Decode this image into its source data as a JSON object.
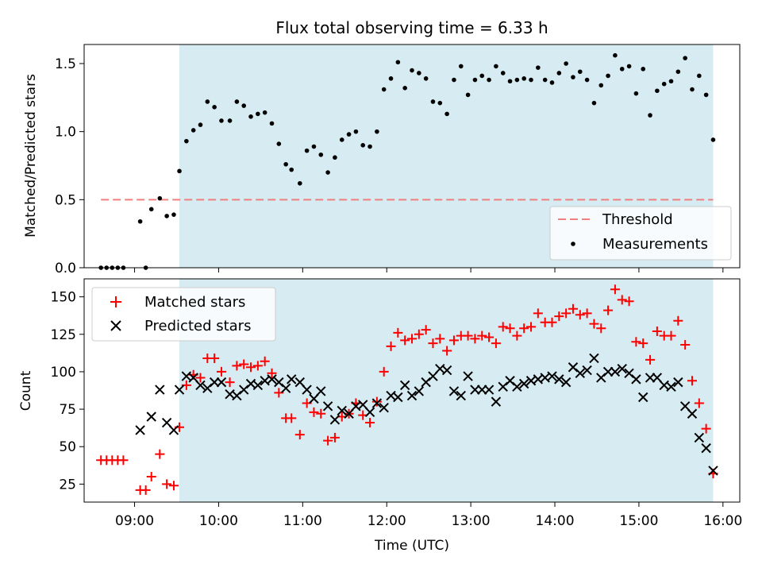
{
  "title": "Flux total observing time = 6.33 h",
  "colors": {
    "shade": "#add8e6",
    "threshold": "#f08080",
    "matched": "#ff0000",
    "predicted": "#000000",
    "measurement": "#000000"
  },
  "chart_data": [
    {
      "type": "scatter",
      "ylabel": "Matched/Predicted stars",
      "xlim": [
        "08:24",
        "16:12"
      ],
      "ylim": [
        0,
        1.64
      ],
      "yticks": [
        "0.0",
        "0.5",
        "1.0",
        "1.5"
      ],
      "shaded_span": [
        "09:32",
        "15:53"
      ],
      "legend": {
        "location": "lower right",
        "entries": [
          "Threshold",
          "Measurements"
        ]
      },
      "threshold": {
        "name": "Threshold",
        "value": 0.5,
        "x_range": [
          "08:36",
          "15:53"
        ]
      },
      "series": [
        {
          "name": "Measurements",
          "points": [
            [
              "08:36",
              0.0
            ],
            [
              "08:40",
              0.0
            ],
            [
              "08:44",
              0.0
            ],
            [
              "08:48",
              0.0
            ],
            [
              "08:52",
              0.0
            ],
            [
              "09:04",
              0.34
            ],
            [
              "09:08",
              0.0
            ],
            [
              "09:12",
              0.43
            ],
            [
              "09:18",
              0.51
            ],
            [
              "09:23",
              0.38
            ],
            [
              "09:28",
              0.39
            ],
            [
              "09:32",
              0.71
            ],
            [
              "09:37",
              0.93
            ],
            [
              "09:42",
              1.01
            ],
            [
              "09:47",
              1.05
            ],
            [
              "09:52",
              1.22
            ],
            [
              "09:57",
              1.18
            ],
            [
              "10:02",
              1.08
            ],
            [
              "10:08",
              1.08
            ],
            [
              "10:13",
              1.22
            ],
            [
              "10:18",
              1.19
            ],
            [
              "10:23",
              1.11
            ],
            [
              "10:28",
              1.13
            ],
            [
              "10:33",
              1.14
            ],
            [
              "10:38",
              1.06
            ],
            [
              "10:43",
              0.91
            ],
            [
              "10:48",
              0.76
            ],
            [
              "10:52",
              0.72
            ],
            [
              "10:58",
              0.62
            ],
            [
              "11:03",
              0.86
            ],
            [
              "11:08",
              0.89
            ],
            [
              "11:13",
              0.83
            ],
            [
              "11:18",
              0.7
            ],
            [
              "11:23",
              0.81
            ],
            [
              "11:28",
              0.94
            ],
            [
              "11:33",
              0.98
            ],
            [
              "11:38",
              1.0
            ],
            [
              "11:43",
              0.9
            ],
            [
              "11:48",
              0.89
            ],
            [
              "11:53",
              1.0
            ],
            [
              "11:58",
              1.31
            ],
            [
              "12:03",
              1.39
            ],
            [
              "12:08",
              1.51
            ],
            [
              "12:13",
              1.32
            ],
            [
              "12:18",
              1.45
            ],
            [
              "12:23",
              1.43
            ],
            [
              "12:28",
              1.39
            ],
            [
              "12:33",
              1.22
            ],
            [
              "12:38",
              1.21
            ],
            [
              "12:43",
              1.13
            ],
            [
              "12:48",
              1.38
            ],
            [
              "12:53",
              1.48
            ],
            [
              "12:58",
              1.27
            ],
            [
              "13:03",
              1.38
            ],
            [
              "13:08",
              1.41
            ],
            [
              "13:13",
              1.38
            ],
            [
              "13:18",
              1.48
            ],
            [
              "13:23",
              1.43
            ],
            [
              "13:28",
              1.37
            ],
            [
              "13:33",
              1.38
            ],
            [
              "13:38",
              1.39
            ],
            [
              "13:43",
              1.38
            ],
            [
              "13:48",
              1.47
            ],
            [
              "13:53",
              1.38
            ],
            [
              "13:58",
              1.36
            ],
            [
              "14:03",
              1.43
            ],
            [
              "14:08",
              1.5
            ],
            [
              "14:13",
              1.4
            ],
            [
              "14:18",
              1.44
            ],
            [
              "14:23",
              1.38
            ],
            [
              "14:28",
              1.21
            ],
            [
              "14:33",
              1.34
            ],
            [
              "14:38",
              1.41
            ],
            [
              "14:43",
              1.56
            ],
            [
              "14:48",
              1.46
            ],
            [
              "14:53",
              1.48
            ],
            [
              "14:58",
              1.28
            ],
            [
              "15:03",
              1.46
            ],
            [
              "15:08",
              1.12
            ],
            [
              "15:13",
              1.3
            ],
            [
              "15:18",
              1.35
            ],
            [
              "15:23",
              1.37
            ],
            [
              "15:28",
              1.44
            ],
            [
              "15:33",
              1.54
            ],
            [
              "15:38",
              1.31
            ],
            [
              "15:43",
              1.41
            ],
            [
              "15:48",
              1.27
            ],
            [
              "15:53",
              0.94
            ]
          ]
        }
      ]
    },
    {
      "type": "scatter",
      "xlabel": "Time (UTC)",
      "ylabel": "Count",
      "xlim": [
        "08:24",
        "16:12"
      ],
      "ylim": [
        13,
        162
      ],
      "xticks": [
        "09:00",
        "10:00",
        "11:00",
        "12:00",
        "13:00",
        "14:00",
        "15:00",
        "16:00"
      ],
      "yticks": [
        "25",
        "50",
        "75",
        "100",
        "125",
        "150"
      ],
      "shaded_span": [
        "09:32",
        "15:53"
      ],
      "legend": {
        "location": "upper left",
        "entries": [
          "Matched stars",
          "Predicted stars"
        ]
      },
      "series": [
        {
          "name": "Matched stars",
          "marker": "+",
          "points": [
            [
              "08:36",
              41
            ],
            [
              "08:40",
              41
            ],
            [
              "08:44",
              41
            ],
            [
              "08:48",
              41
            ],
            [
              "08:52",
              41
            ],
            [
              "09:04",
              21
            ],
            [
              "09:08",
              21
            ],
            [
              "09:12",
              30
            ],
            [
              "09:18",
              45
            ],
            [
              "09:23",
              25
            ],
            [
              "09:28",
              24
            ],
            [
              "09:32",
              63
            ],
            [
              "09:37",
              91
            ],
            [
              "09:42",
              98
            ],
            [
              "09:47",
              96
            ],
            [
              "09:52",
              109
            ],
            [
              "09:57",
              109
            ],
            [
              "10:02",
              100
            ],
            [
              "10:08",
              93
            ],
            [
              "10:13",
              104
            ],
            [
              "10:18",
              105
            ],
            [
              "10:23",
              103
            ],
            [
              "10:28",
              104
            ],
            [
              "10:33",
              107
            ],
            [
              "10:38",
              99
            ],
            [
              "10:43",
              86
            ],
            [
              "10:48",
              69
            ],
            [
              "10:52",
              69
            ],
            [
              "10:58",
              58
            ],
            [
              "11:03",
              79
            ],
            [
              "11:08",
              73
            ],
            [
              "11:13",
              72
            ],
            [
              "11:18",
              54
            ],
            [
              "11:23",
              56
            ],
            [
              "11:28",
              70
            ],
            [
              "11:33",
              72
            ],
            [
              "11:38",
              79
            ],
            [
              "11:43",
              71
            ],
            [
              "11:48",
              66
            ],
            [
              "11:53",
              80
            ],
            [
              "11:58",
              100
            ],
            [
              "12:03",
              117
            ],
            [
              "12:08",
              126
            ],
            [
              "12:13",
              121
            ],
            [
              "12:18",
              122
            ],
            [
              "12:23",
              125
            ],
            [
              "12:28",
              128
            ],
            [
              "12:33",
              119
            ],
            [
              "12:38",
              122
            ],
            [
              "12:43",
              114
            ],
            [
              "12:48",
              121
            ],
            [
              "12:53",
              124
            ],
            [
              "12:58",
              124
            ],
            [
              "13:03",
              122
            ],
            [
              "13:08",
              124
            ],
            [
              "13:13",
              123
            ],
            [
              "13:18",
              119
            ],
            [
              "13:23",
              130
            ],
            [
              "13:28",
              129
            ],
            [
              "13:33",
              124
            ],
            [
              "13:38",
              129
            ],
            [
              "13:43",
              130
            ],
            [
              "13:48",
              139
            ],
            [
              "13:53",
              133
            ],
            [
              "13:58",
              133
            ],
            [
              "14:03",
              137
            ],
            [
              "14:08",
              139
            ],
            [
              "14:13",
              142
            ],
            [
              "14:18",
              138
            ],
            [
              "14:23",
              139
            ],
            [
              "14:28",
              132
            ],
            [
              "14:33",
              129
            ],
            [
              "14:38",
              141
            ],
            [
              "14:43",
              155
            ],
            [
              "14:48",
              148
            ],
            [
              "14:53",
              147
            ],
            [
              "14:58",
              120
            ],
            [
              "15:03",
              119
            ],
            [
              "15:08",
              108
            ],
            [
              "15:13",
              127
            ],
            [
              "15:18",
              124
            ],
            [
              "15:23",
              124
            ],
            [
              "15:28",
              134
            ],
            [
              "15:33",
              118
            ],
            [
              "15:38",
              94
            ],
            [
              "15:43",
              79
            ],
            [
              "15:48",
              62
            ],
            [
              "15:53",
              32
            ]
          ]
        },
        {
          "name": "Predicted stars",
          "marker": "x",
          "points": [
            [
              "09:04",
              61
            ],
            [
              "09:12",
              70
            ],
            [
              "09:18",
              88
            ],
            [
              "09:23",
              66
            ],
            [
              "09:28",
              61
            ],
            [
              "09:32",
              88
            ],
            [
              "09:37",
              97
            ],
            [
              "09:42",
              96
            ],
            [
              "09:47",
              91
            ],
            [
              "09:52",
              89
            ],
            [
              "09:57",
              93
            ],
            [
              "10:02",
              93
            ],
            [
              "10:08",
              85
            ],
            [
              "10:13",
              84
            ],
            [
              "10:18",
              88
            ],
            [
              "10:23",
              92
            ],
            [
              "10:28",
              91
            ],
            [
              "10:33",
              94
            ],
            [
              "10:38",
              95
            ],
            [
              "10:43",
              93
            ],
            [
              "10:48",
              89
            ],
            [
              "10:52",
              95
            ],
            [
              "10:58",
              93
            ],
            [
              "11:03",
              88
            ],
            [
              "11:08",
              82
            ],
            [
              "11:13",
              87
            ],
            [
              "11:18",
              77
            ],
            [
              "11:23",
              68
            ],
            [
              "11:28",
              74
            ],
            [
              "11:33",
              72
            ],
            [
              "11:38",
              77
            ],
            [
              "11:43",
              78
            ],
            [
              "11:48",
              73
            ],
            [
              "11:53",
              79
            ],
            [
              "11:58",
              76
            ],
            [
              "12:03",
              84
            ],
            [
              "12:08",
              83
            ],
            [
              "12:13",
              91
            ],
            [
              "12:18",
              84
            ],
            [
              "12:23",
              87
            ],
            [
              "12:28",
              93
            ],
            [
              "12:33",
              97
            ],
            [
              "12:38",
              102
            ],
            [
              "12:43",
              101
            ],
            [
              "12:48",
              87
            ],
            [
              "12:53",
              84
            ],
            [
              "12:58",
              97
            ],
            [
              "13:03",
              88
            ],
            [
              "13:08",
              88
            ],
            [
              "13:13",
              88
            ],
            [
              "13:18",
              80
            ],
            [
              "13:23",
              90
            ],
            [
              "13:28",
              94
            ],
            [
              "13:33",
              90
            ],
            [
              "13:38",
              92
            ],
            [
              "13:43",
              94
            ],
            [
              "13:48",
              95
            ],
            [
              "13:53",
              96
            ],
            [
              "13:58",
              97
            ],
            [
              "14:03",
              95
            ],
            [
              "14:08",
              93
            ],
            [
              "14:13",
              103
            ],
            [
              "14:18",
              99
            ],
            [
              "14:23",
              101
            ],
            [
              "14:28",
              109
            ],
            [
              "14:33",
              96
            ],
            [
              "14:38",
              100
            ],
            [
              "14:43",
              100
            ],
            [
              "14:48",
              102
            ],
            [
              "14:53",
              99
            ],
            [
              "14:58",
              95
            ],
            [
              "15:03",
              83
            ],
            [
              "15:08",
              96
            ],
            [
              "15:13",
              96
            ],
            [
              "15:18",
              91
            ],
            [
              "15:23",
              90
            ],
            [
              "15:28",
              93
            ],
            [
              "15:33",
              77
            ],
            [
              "15:38",
              72
            ],
            [
              "15:43",
              56
            ],
            [
              "15:48",
              49
            ],
            [
              "15:53",
              34
            ]
          ]
        }
      ]
    }
  ]
}
